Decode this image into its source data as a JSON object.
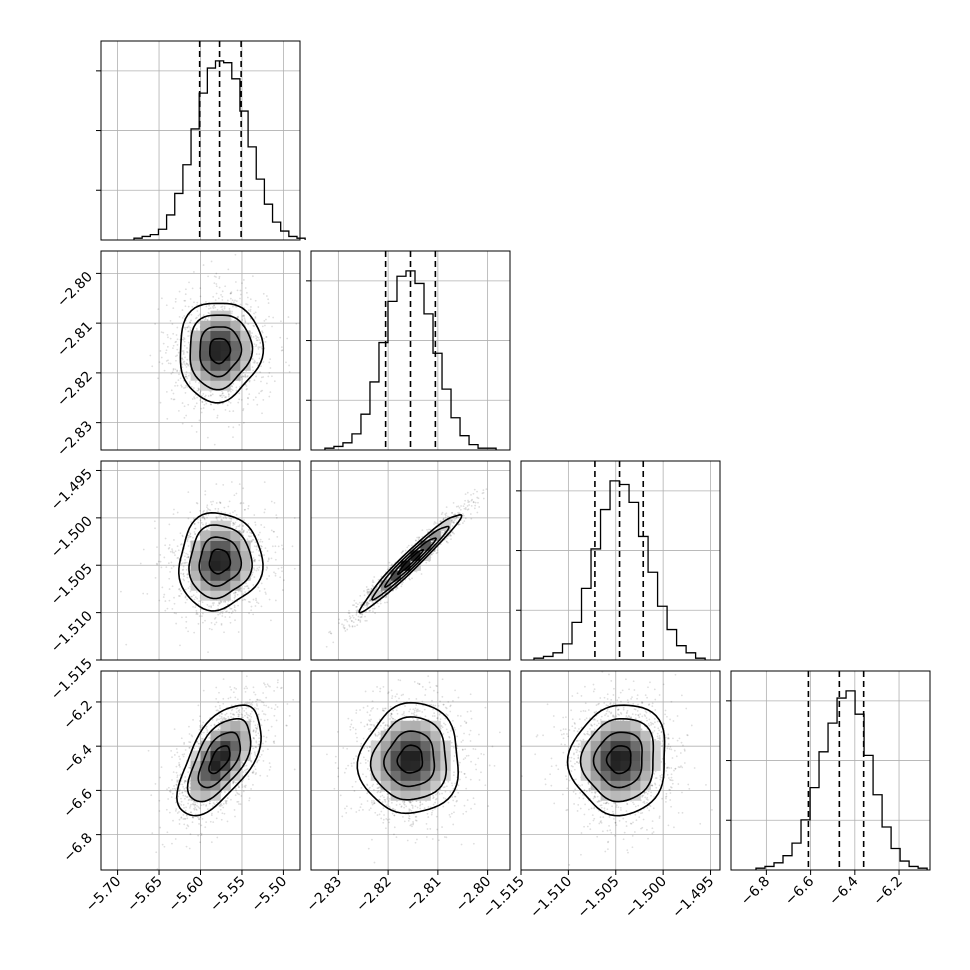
{
  "chart_data": {
    "type": "corner",
    "parameters": [
      {
        "mean": -5.577,
        "q16": -5.601,
        "q50": -5.577,
        "q84": -5.551,
        "range": [
          -5.72,
          -5.48
        ],
        "ticks": [
          -5.7,
          -5.65,
          -5.6,
          -5.55,
          -5.5
        ],
        "tick_labels": [
          "−5.70",
          "−5.65",
          "−5.60",
          "−5.55",
          "−5.50"
        ]
      },
      {
        "mean": -2.8155,
        "q16": -2.8205,
        "q50": -2.8155,
        "q84": -2.8105,
        "range": [
          -2.8355,
          -2.7955
        ],
        "ticks": [
          -2.83,
          -2.82,
          -2.81,
          -2.8
        ],
        "tick_labels": [
          "−2.83",
          "−2.82",
          "−2.81",
          "−2.80"
        ]
      },
      {
        "mean": -1.5046,
        "q16": -1.5072,
        "q50": -1.5046,
        "q84": -1.5021,
        "range": [
          -1.515,
          -1.494
        ],
        "ticks": [
          -1.515,
          -1.51,
          -1.505,
          -1.5,
          -1.495
        ],
        "tick_labels": [
          "−1.515",
          "−1.510",
          "−1.505",
          "−1.500",
          "−1.495"
        ]
      },
      {
        "mean": -6.46,
        "q16": -6.61,
        "q50": -6.47,
        "q84": -6.36,
        "range": [
          -6.96,
          -6.06
        ],
        "ticks": [
          -6.8,
          -6.6,
          -6.4,
          -6.2
        ],
        "tick_labels": [
          "−6.8",
          "−6.6",
          "−6.4",
          "−6.2"
        ]
      }
    ],
    "histograms": [
      [
        1,
        2,
        3,
        6,
        14,
        26,
        42,
        62,
        82,
        96,
        100,
        99,
        90,
        72,
        52,
        34,
        20,
        10,
        5,
        2,
        1
      ],
      [
        1,
        2,
        4,
        9,
        20,
        38,
        60,
        83,
        97,
        100,
        93,
        76,
        54,
        34,
        18,
        8,
        3,
        1,
        1
      ],
      [
        1,
        2,
        4,
        9,
        21,
        40,
        62,
        84,
        100,
        98,
        88,
        69,
        49,
        30,
        17,
        8,
        4,
        1
      ],
      [
        1,
        2,
        4,
        8,
        15,
        28,
        46,
        66,
        82,
        96,
        100,
        87,
        64,
        42,
        24,
        12,
        5,
        2,
        1
      ]
    ],
    "correlations": [
      [
        1,
        0.05,
        0.05,
        0.58
      ],
      [
        0.05,
        1,
        0.97,
        0.05
      ],
      [
        0.05,
        0.97,
        1,
        0.05
      ],
      [
        0.58,
        0.05,
        0.05,
        1
      ]
    ],
    "contour_levels_sigma": [
      0.5,
      1.0,
      1.5,
      2.0
    ],
    "grid": true
  }
}
